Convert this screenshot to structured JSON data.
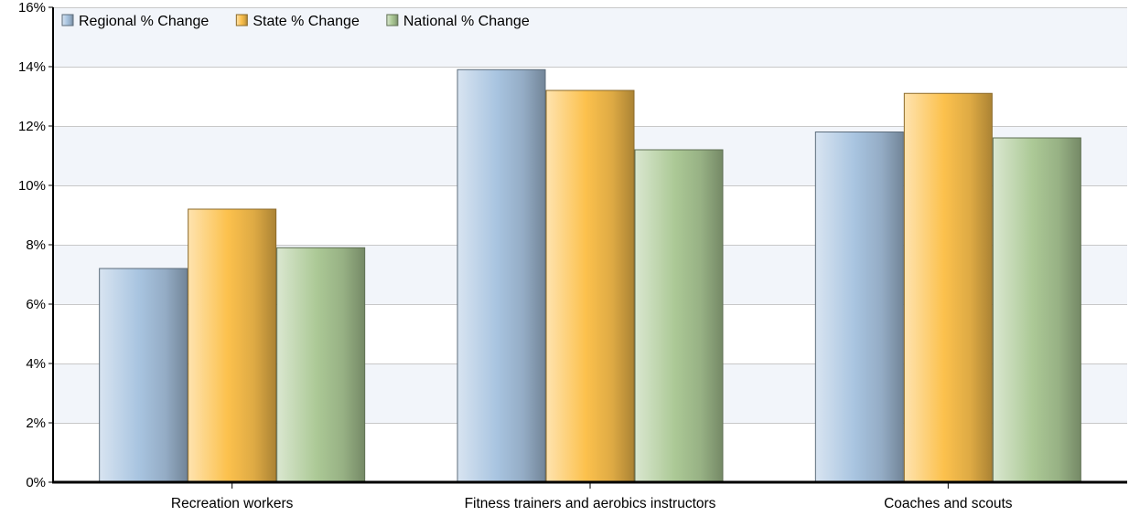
{
  "chart_data": {
    "type": "bar",
    "title": "",
    "xlabel": "",
    "ylabel": "",
    "categories": [
      "Recreation workers",
      "Fitness trainers and aerobics instructors",
      "Coaches and scouts"
    ],
    "series": [
      {
        "name": "Regional % Change",
        "values": [
          7.2,
          13.9,
          11.8
        ],
        "color": "#a8c4e0"
      },
      {
        "name": "State % Change",
        "values": [
          9.2,
          13.2,
          13.1
        ],
        "color": "#fcc14d"
      },
      {
        "name": "National % Change",
        "values": [
          7.9,
          11.2,
          11.6
        ],
        "color": "#acc996"
      }
    ],
    "ylim": [
      0,
      16
    ],
    "y_ticks": [
      "0%",
      "2%",
      "4%",
      "6%",
      "8%",
      "10%",
      "12%",
      "14%",
      "16%"
    ],
    "grid": true,
    "legend_position": "top-left"
  }
}
